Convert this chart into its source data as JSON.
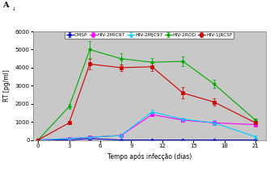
{
  "title_label": "A",
  "xlabel": "Tempo após infecção (dias)",
  "ylabel": "RT [pg/ml]",
  "background_color": "#c8c8c8",
  "x": [
    0,
    3,
    5,
    8,
    11,
    14,
    17,
    21
  ],
  "series": {
    "CMSP": {
      "y": [
        0,
        0,
        80,
        0,
        0,
        0,
        0,
        0
      ],
      "yerr": [
        0,
        0,
        40,
        0,
        0,
        0,
        0,
        0
      ],
      "color": "#0000CC",
      "marker": "D",
      "markersize": 2.5,
      "linewidth": 0.8
    },
    "HIV-2MIC97": {
      "y": [
        0,
        80,
        150,
        250,
        1400,
        1100,
        950,
        850
      ],
      "yerr": [
        0,
        20,
        40,
        60,
        100,
        90,
        120,
        70
      ],
      "color": "#FF00FF",
      "marker": "s",
      "markersize": 2.5,
      "linewidth": 0.8
    },
    "HIV-2MJC97": {
      "y": [
        0,
        80,
        150,
        250,
        1550,
        1150,
        950,
        180
      ],
      "yerr": [
        0,
        20,
        40,
        60,
        110,
        100,
        130,
        50
      ],
      "color": "#00CCFF",
      "marker": "^",
      "markersize": 2.5,
      "linewidth": 0.8
    },
    "HIV-2ROD": {
      "y": [
        0,
        1850,
        5000,
        4500,
        4300,
        4350,
        3100,
        1100
      ],
      "yerr": [
        0,
        120,
        480,
        320,
        230,
        270,
        230,
        90
      ],
      "color": "#00AA00",
      "marker": "o",
      "markersize": 2.5,
      "linewidth": 0.8
    },
    "HIV-1JRCSF": {
      "y": [
        0,
        950,
        4200,
        4000,
        4050,
        2600,
        2100,
        950
      ],
      "yerr": [
        0,
        90,
        280,
        180,
        230,
        320,
        180,
        70
      ],
      "color": "#CC0000",
      "marker": "s",
      "markersize": 2.5,
      "linewidth": 0.8
    }
  },
  "ylim": [
    0,
    6000
  ],
  "yticks": [
    0,
    1000,
    2000,
    3000,
    4000,
    5000,
    6000
  ],
  "xticks": [
    0,
    3,
    6,
    9,
    12,
    15,
    18,
    21
  ],
  "legend_fontsize": 4.2,
  "axis_fontsize": 5.5,
  "tick_fontsize": 5.0
}
